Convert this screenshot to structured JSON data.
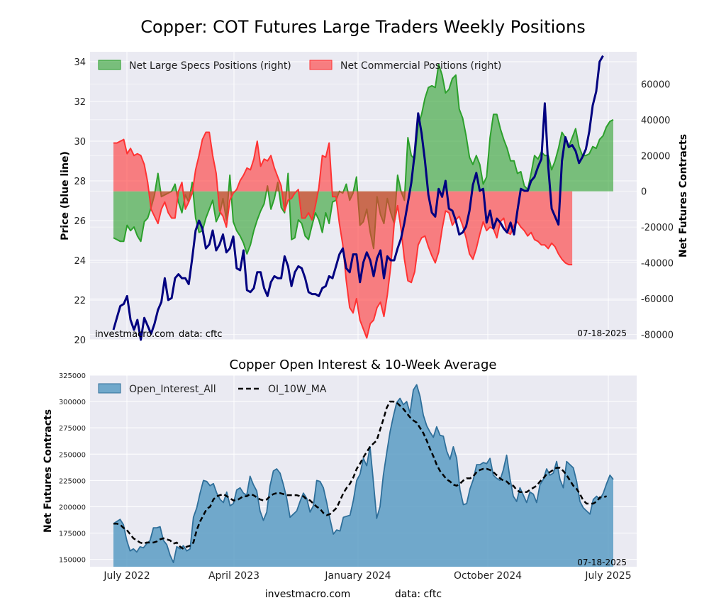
{
  "title": "Copper: COT Futures Large Traders Weekly Positions",
  "watermark_site": "investmacro.com",
  "watermark_data": "data: cftc",
  "date": "07-18-2025",
  "footer_site": "investmacro.com",
  "footer_data": "data: cftc",
  "chart_data": [
    {
      "type": "line",
      "title": "Copper: COT Futures Large Traders Weekly Positions",
      "ylabel_left": "Price (blue line)",
      "ylabel_right": "Net Futures Contracts",
      "ylim_left": [
        20,
        34.5
      ],
      "ylim_right": [
        -83000,
        78000
      ],
      "yticks_left": [
        "20",
        "22",
        "24",
        "26",
        "28",
        "30",
        "32",
        "34"
      ],
      "yticks_right": [
        "-80000",
        "-60000",
        "-40000",
        "-20000",
        "0",
        "20000",
        "40000",
        "60000"
      ],
      "grid": true,
      "legend_position": "top-left",
      "colors": {
        "specs": "#2ca02c",
        "commercial": "#ff3333",
        "price": "#000080"
      },
      "series": [
        {
          "name": "Net Large Specs Positions (right)",
          "style": "area",
          "values": [
            -26000,
            -27000,
            -28000,
            -28000,
            -19000,
            -22000,
            -20000,
            -25000,
            -28000,
            -17000,
            -15000,
            -9000,
            -2000,
            10000,
            -3000,
            -2000,
            -1000,
            0,
            4000,
            -6000,
            -12000,
            -2000,
            -6000,
            5000,
            -15000,
            -23000,
            -22000,
            -15000,
            -10000,
            -5000,
            -17000,
            -13000,
            -4000,
            -16000,
            9000,
            -17000,
            -22000,
            -25000,
            -29000,
            -35000,
            -30000,
            -22000,
            -16000,
            -11000,
            -7000,
            3000,
            -10000,
            -4000,
            5000,
            -9000,
            -12000,
            10000,
            -27000,
            -26000,
            -16000,
            -18000,
            -25000,
            -27000,
            -19000,
            -12000,
            -16000,
            -23000,
            -12000,
            -18000,
            -6000,
            -5000,
            0,
            -1000,
            4000,
            -5000,
            -1000,
            8000,
            -19000,
            -17000,
            -10000,
            -23000,
            -32000,
            -3000,
            -13000,
            -18000,
            -4000,
            -12000,
            -18000,
            9000,
            0,
            -5000,
            30000,
            20000,
            18000,
            37000,
            43000,
            52000,
            58000,
            59000,
            58000,
            71000,
            65000,
            55000,
            57000,
            63000,
            65000,
            46000,
            41000,
            31000,
            19000,
            15000,
            20000,
            15000,
            4000,
            8000,
            30000,
            43000,
            43000,
            35000,
            29000,
            24000,
            17000,
            17000,
            10000,
            11000,
            3000,
            1000,
            10000,
            20000,
            18000,
            22000,
            20000,
            20000,
            12000,
            17000,
            24000,
            33000,
            30000,
            25000,
            30000,
            35000,
            25000,
            20000,
            20000,
            21000,
            25000,
            24000,
            29000,
            31000,
            36000,
            39000,
            40000
          ]
        },
        {
          "name": "Net Commercial Positions (right)",
          "style": "area",
          "values": [
            27000,
            27000,
            28000,
            29000,
            21000,
            24000,
            20000,
            21000,
            20000,
            15000,
            5000,
            -10000,
            -14000,
            -18000,
            -10000,
            -6000,
            -12000,
            -15000,
            -15000,
            0,
            5000,
            -10000,
            -6000,
            -1000,
            12000,
            20000,
            29000,
            33000,
            33000,
            20000,
            10000,
            -11000,
            -14000,
            -20000,
            -5000,
            -1000,
            1000,
            6000,
            9000,
            13000,
            12000,
            18000,
            28000,
            14000,
            18000,
            17000,
            20000,
            13000,
            8000,
            3000,
            -11000,
            -5000,
            -4000,
            -1000,
            1000,
            -15000,
            -15000,
            -12000,
            -16000,
            -8000,
            2000,
            20000,
            19000,
            27000,
            -3000,
            -3000,
            -18000,
            -30000,
            -50000,
            -65000,
            -68000,
            -60000,
            -72000,
            -77000,
            -82000,
            -74000,
            -72000,
            -65000,
            -62000,
            -70000,
            -58000,
            -42000,
            -18000,
            -8000,
            -21000,
            -38000,
            -50000,
            -51000,
            -45000,
            -30000,
            -26000,
            -25000,
            -31000,
            -36000,
            -40000,
            -34000,
            -21000,
            -11000,
            -12000,
            -19000,
            -16000,
            -14000,
            -19000,
            -26000,
            -35000,
            -38000,
            -32000,
            -24000,
            -17000,
            -22000,
            -20000,
            -21000,
            -26000,
            -17000,
            -15000,
            -23000,
            -24000,
            -19000,
            -17000,
            -20000,
            -22000,
            -25000,
            -23000,
            -27000,
            -28000,
            -30000,
            -30000,
            -32000,
            -29000,
            -31000,
            -35000,
            -38000,
            -40000,
            -41000,
            -41000
          ]
        },
        {
          "name": "Price (blue line)",
          "style": "line",
          "values": [
            20.5,
            21.1,
            21.7,
            21.8,
            22.2,
            21.0,
            20.5,
            21.0,
            20.0,
            21.1,
            20.7,
            20.3,
            20.8,
            21.5,
            21.9,
            23.1,
            22.0,
            22.1,
            23.1,
            23.3,
            23.1,
            23.1,
            22.8,
            24.1,
            25.5,
            26.0,
            25.6,
            24.6,
            24.8,
            25.5,
            24.5,
            24.8,
            25.3,
            24.4,
            24.6,
            25.2,
            23.6,
            23.5,
            24.5,
            22.5,
            22.4,
            22.6,
            23.4,
            23.4,
            22.6,
            22.2,
            22.9,
            23.2,
            23.1,
            23.1,
            24.2,
            23.7,
            22.7,
            23.4,
            23.7,
            23.6,
            23.1,
            22.4,
            22.3,
            22.3,
            22.2,
            22.6,
            22.7,
            23.2,
            23.1,
            23.7,
            24.3,
            24.6,
            23.6,
            23.4,
            24.3,
            24.3,
            22.9,
            23.9,
            24.4,
            24.0,
            23.2,
            24.1,
            24.5,
            23.1,
            24.2,
            24.0,
            24.0,
            24.6,
            25.1,
            25.9,
            26.9,
            27.9,
            29.4,
            31.4,
            30.4,
            29.0,
            27.3,
            26.4,
            26.2,
            27.6,
            27.2,
            28.0,
            26.6,
            26.5,
            26.0,
            25.3,
            25.4,
            25.7,
            26.5,
            27.8,
            28.4,
            27.5,
            27.6,
            25.9,
            26.5,
            25.6,
            26.1,
            25.9,
            25.6,
            25.4,
            25.9,
            25.3,
            26.5,
            27.6,
            27.5,
            27.5,
            28.0,
            28.2,
            28.7,
            29.1,
            31.9,
            28.7,
            26.6,
            26.2,
            25.8,
            29.0,
            30.2,
            29.7,
            29.8,
            29.5,
            28.9,
            29.2,
            29.6,
            30.5,
            31.8,
            32.5,
            34.0,
            34.3
          ]
        }
      ]
    },
    {
      "type": "area",
      "title": "Copper Open Interest & 10-Week Average",
      "ylabel": "Net Futures Contracts",
      "ylim": [
        143000,
        325000
      ],
      "yticks": [
        "150000",
        "175000",
        "200000",
        "225000",
        "250000",
        "275000",
        "300000",
        "325000"
      ],
      "xlabels": [
        "July 2022",
        "April 2023",
        "January 2024",
        "October 2024",
        "July 2025"
      ],
      "grid": true,
      "legend_position": "top-left",
      "colors": {
        "oi": "#5b9cc4",
        "ma": "#000000"
      },
      "series": [
        {
          "name": "Open_Interest_All",
          "values": [
            184000,
            186000,
            188000,
            183000,
            168000,
            158000,
            160000,
            157000,
            162000,
            161000,
            165000,
            168000,
            180000,
            180000,
            181000,
            168000,
            164000,
            154000,
            147000,
            162000,
            160000,
            163000,
            158000,
            160000,
            190000,
            199000,
            213000,
            225000,
            224000,
            220000,
            222000,
            213000,
            207000,
            204000,
            214000,
            201000,
            203000,
            216000,
            218000,
            213000,
            211000,
            229000,
            221000,
            215000,
            196000,
            187000,
            195000,
            220000,
            234000,
            236000,
            232000,
            221000,
            208000,
            190000,
            193000,
            196000,
            205000,
            213000,
            208000,
            195000,
            201000,
            225000,
            224000,
            218000,
            204000,
            188000,
            174000,
            178000,
            177000,
            190000,
            191000,
            192000,
            206000,
            225000,
            231000,
            246000,
            239000,
            257000,
            224000,
            189000,
            200000,
            230000,
            251000,
            271000,
            286000,
            299000,
            303000,
            297000,
            300000,
            289000,
            311000,
            316000,
            305000,
            287000,
            277000,
            271000,
            266000,
            276000,
            268000,
            267000,
            253000,
            245000,
            257000,
            246000,
            216000,
            202000,
            203000,
            217000,
            226000,
            240000,
            240000,
            242000,
            241000,
            246000,
            230000,
            227000,
            225000,
            235000,
            249000,
            227000,
            210000,
            205000,
            218000,
            211000,
            204000,
            214000,
            212000,
            204000,
            221000,
            226000,
            236000,
            230000,
            232000,
            243000,
            226000,
            218000,
            243000,
            240000,
            237000,
            224000,
            205000,
            199000,
            196000,
            193000,
            207000,
            210000,
            207000,
            213000,
            222000,
            230000,
            226000
          ],
          "style": "area"
        },
        {
          "name": "OI_10W_MA",
          "values": [
            184000,
            184000,
            183000,
            180000,
            178000,
            174000,
            170000,
            168000,
            166000,
            165000,
            166000,
            166000,
            166000,
            167000,
            169000,
            170000,
            169000,
            168000,
            165000,
            166000,
            162000,
            160000,
            162000,
            163000,
            166000,
            178000,
            186000,
            192000,
            198000,
            200000,
            207000,
            210000,
            211000,
            212000,
            210000,
            208000,
            206000,
            206000,
            208000,
            210000,
            210000,
            212000,
            211000,
            209000,
            207000,
            206000,
            207000,
            210000,
            212000,
            213000,
            213000,
            212000,
            211000,
            211000,
            211000,
            211000,
            210000,
            210000,
            207000,
            206000,
            203000,
            200000,
            198000,
            194000,
            192000,
            193000,
            196000,
            199000,
            206000,
            213000,
            218000,
            222000,
            228000,
            236000,
            241000,
            247000,
            252000,
            257000,
            260000,
            263000,
            273000,
            283000,
            294000,
            300000,
            300000,
            299000,
            296000,
            293000,
            289000,
            285000,
            282000,
            280000,
            275000,
            270000,
            263000,
            255000,
            248000,
            240000,
            234000,
            230000,
            226000,
            224000,
            221000,
            220000,
            222000,
            225000,
            227000,
            227000,
            229000,
            233000,
            235000,
            236000,
            236000,
            235000,
            233000,
            230000,
            227000,
            225000,
            224000,
            221000,
            220000,
            216000,
            214000,
            214000,
            214000,
            216000,
            218000,
            220000,
            224000,
            227000,
            231000,
            233000,
            235000,
            237000,
            237000,
            234000,
            230000,
            225000,
            220000,
            217000,
            212000,
            206000,
            203000,
            203000,
            203000,
            205000,
            209000,
            209000,
            210000
          ],
          "style": "dashed-line"
        }
      ]
    }
  ]
}
